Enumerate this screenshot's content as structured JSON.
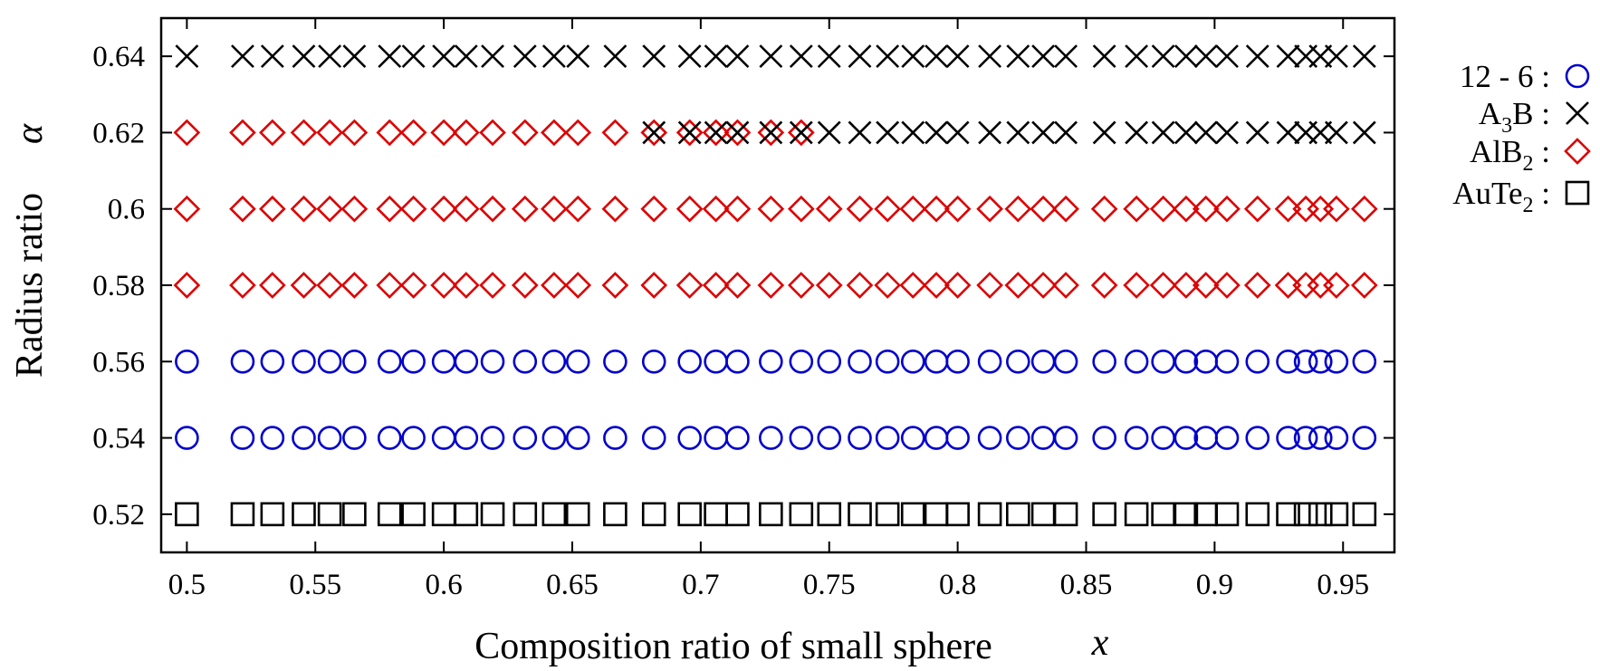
{
  "chart_data": {
    "type": "scatter",
    "title": "",
    "xlabel": "Composition ratio of small sphere",
    "xlabel_symbol": "x",
    "ylabel": "Radius ratio",
    "ylabel_symbol": "α",
    "xlim": [
      0.49,
      0.97
    ],
    "ylim": [
      0.51,
      0.65
    ],
    "xticks": [
      0.5,
      0.55,
      0.6,
      0.65,
      0.7,
      0.75,
      0.8,
      0.85,
      0.9,
      0.95
    ],
    "xtick_labels": [
      "0.5",
      "0.55",
      "0.6",
      "0.65",
      "0.7",
      "0.75",
      "0.8",
      "0.85",
      "0.9",
      "0.95"
    ],
    "yticks": [
      0.52,
      0.54,
      0.56,
      0.58,
      0.6,
      0.62,
      0.64
    ],
    "ytick_labels": [
      "0.52",
      "0.54",
      "0.56",
      "0.58",
      "0.6",
      "0.62",
      "0.64"
    ],
    "grid": false,
    "legend_position": "outside-right",
    "x_grid": [
      0.5,
      0.5217,
      0.5333,
      0.5455,
      0.5556,
      0.5652,
      0.5789,
      0.5882,
      0.6,
      0.6087,
      0.619,
      0.6316,
      0.6429,
      0.6522,
      0.6667,
      0.6818,
      0.6957,
      0.7059,
      0.7143,
      0.7273,
      0.7391,
      0.75,
      0.7619,
      0.7727,
      0.7826,
      0.7917,
      0.8,
      0.8125,
      0.8235,
      0.8333,
      0.8421,
      0.8571,
      0.8696,
      0.88,
      0.8889,
      0.8966,
      0.9048,
      0.9167,
      0.9286,
      0.9355,
      0.9412,
      0.9474,
      0.9583
    ],
    "series": [
      {
        "name": "12 - 6",
        "name_sub": "",
        "marker": "circle",
        "color": "#0000cc",
        "y_values": [
          0.54,
          0.56
        ],
        "x_range": "all"
      },
      {
        "name": "A",
        "name_sub": "3",
        "name_rest": "B",
        "marker": "cross",
        "color": "#000000",
        "y_values": [
          0.64
        ],
        "x_range": "all",
        "extra": {
          "y": 0.62,
          "x_min": 0.68
        }
      },
      {
        "name": "AlB",
        "name_sub": "2",
        "name_rest": "",
        "marker": "diamond",
        "color": "#dd0000",
        "y_values": [
          0.58,
          0.6
        ],
        "x_range": "all",
        "extra": {
          "y": 0.62,
          "x_max": 0.74
        }
      },
      {
        "name": "AuTe",
        "name_sub": "2",
        "name_rest": "",
        "marker": "square",
        "color": "#000000",
        "y_values": [
          0.52
        ],
        "x_range": "all"
      }
    ],
    "legend_suffix": ":"
  }
}
